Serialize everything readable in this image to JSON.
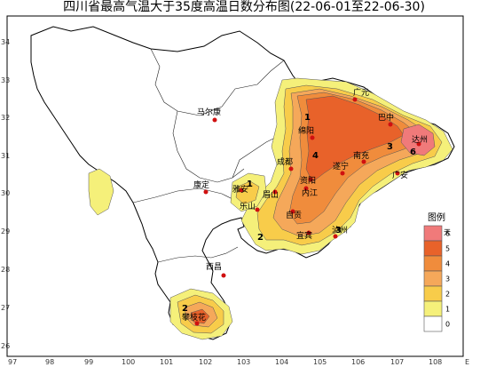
{
  "title": "四川省最高气温大于35度高温日数分布图(22-06-01至22-06-30)",
  "axes": {
    "x_ticks": [
      "97",
      "98",
      "99",
      "100",
      "101",
      "102",
      "103",
      "104",
      "105",
      "106",
      "107",
      "108"
    ],
    "y_ticks": [
      "34",
      "33",
      "32",
      "31",
      "30",
      "29",
      "28",
      "27",
      "26"
    ],
    "x_unit": "E"
  },
  "cities": [
    {
      "name": "马尔康"
    },
    {
      "name": "康定"
    },
    {
      "name": "西昌"
    },
    {
      "name": "攀枝花"
    },
    {
      "name": "绵阳"
    },
    {
      "name": "成都"
    },
    {
      "name": "雅安"
    },
    {
      "name": "乐山"
    },
    {
      "name": "眉山"
    },
    {
      "name": "内江"
    },
    {
      "name": "自贡"
    },
    {
      "name": "宜宾"
    },
    {
      "name": "泸州"
    },
    {
      "name": "遂宁"
    },
    {
      "name": "南充"
    },
    {
      "name": "巴中"
    },
    {
      "name": "达州"
    },
    {
      "name": "广元"
    },
    {
      "name": "资阳"
    },
    {
      "name": "广安"
    }
  ],
  "contour_labels": [
    "1",
    "4",
    "3",
    "6",
    "2",
    "2",
    "3",
    "1"
  ],
  "legend": {
    "title": "图例",
    "unit": "天",
    "levels": [
      {
        "label": "6",
        "color": "#f07a7a"
      },
      {
        "label": "5",
        "color": "#e8622a"
      },
      {
        "label": "4",
        "color": "#f08c3c"
      },
      {
        "label": "3",
        "color": "#f5a85a"
      },
      {
        "label": "2",
        "color": "#f8cc4a"
      },
      {
        "label": "1",
        "color": "#f5f07a"
      },
      {
        "label": "0",
        "color": "#ffffff"
      }
    ]
  }
}
